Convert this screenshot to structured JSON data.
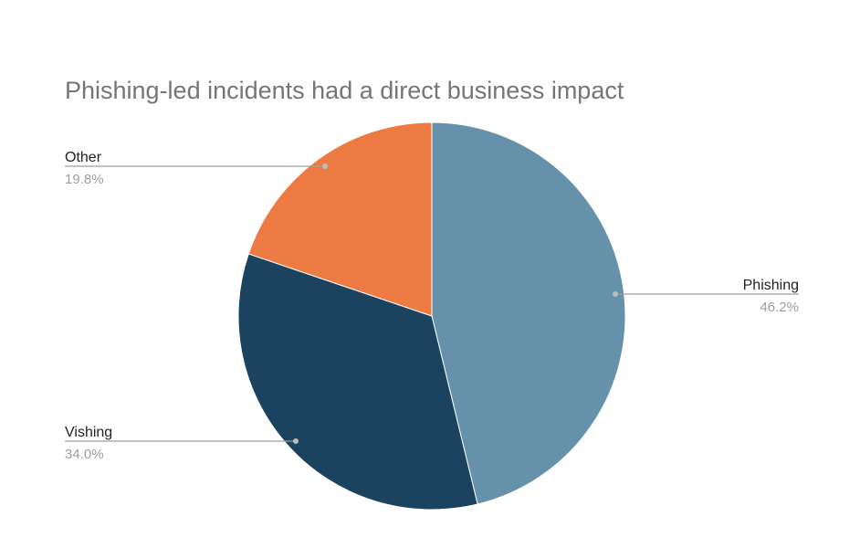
{
  "chart_data": {
    "type": "pie",
    "title": "Phishing-led incidents had a direct business impact",
    "slices": [
      {
        "name": "Phishing",
        "value": 46.2,
        "label": "46.2%",
        "color": "#6591ab"
      },
      {
        "name": "Vishing",
        "value": 34.0,
        "label": "34.0%",
        "color": "#1b425e"
      },
      {
        "name": "Other",
        "value": 19.8,
        "label": "19.8%",
        "color": "#ee7a43"
      }
    ],
    "start": "12 o'clock",
    "direction": "clockwise",
    "legend": "none",
    "labels": "outside with leader lines"
  }
}
